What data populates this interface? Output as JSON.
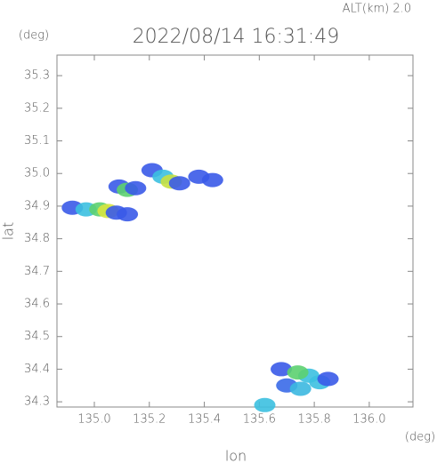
{
  "chart_data": {
    "type": "scatter",
    "title": "2022/08/14 16:31:49",
    "subtitle": "ALT(km) 2.0",
    "x_label": "lon",
    "y_label": "lat",
    "x_unit": "(deg)",
    "y_unit": "(deg)",
    "xlim": [
      134.864,
      136.159
    ],
    "ylim": [
      34.284,
      35.363
    ],
    "xticks": [
      {
        "value": 135.0,
        "label": "135.0"
      },
      135.2,
      135.4,
      135.6,
      135.8,
      {
        "value": 136.0,
        "label": "136.0"
      }
    ],
    "yticks": [
      34.3,
      34.4,
      34.5,
      34.6,
      34.7,
      34.8,
      34.9,
      {
        "value": 35.0,
        "label": "35.0"
      },
      35.1,
      35.2,
      35.3
    ],
    "x": [
      134.92,
      134.97,
      135.02,
      135.05,
      135.08,
      135.12,
      135.09,
      135.12,
      135.15,
      135.21,
      135.25,
      135.28,
      135.31,
      135.38,
      135.43,
      135.68,
      135.7,
      135.75,
      135.78,
      135.82,
      135.85,
      135.74,
      135.62
    ],
    "values": [
      34.895,
      34.89,
      34.89,
      34.885,
      34.88,
      34.875,
      34.96,
      34.95,
      34.955,
      35.01,
      34.99,
      34.975,
      34.97,
      34.99,
      34.98,
      34.4,
      34.35,
      34.34,
      34.38,
      34.36,
      34.37,
      34.39,
      34.29
    ],
    "colors": [
      "#3a5ae8",
      "#3cc0e0",
      "#5cd070",
      "#d8e640",
      "#3a5ae8",
      "#3a5ae8",
      "#3a5ae8",
      "#5cd070",
      "#3a5ae8",
      "#3a5ae8",
      "#3cc0e0",
      "#c8e040",
      "#3a5ae8",
      "#3a5ae8",
      "#3a5ae8",
      "#3a5ae8",
      "#3a6ae8",
      "#3cb8e0",
      "#3cc0e0",
      "#3cc0e0",
      "#3a5ae8",
      "#5cd070",
      "#3cc0e0"
    ]
  }
}
